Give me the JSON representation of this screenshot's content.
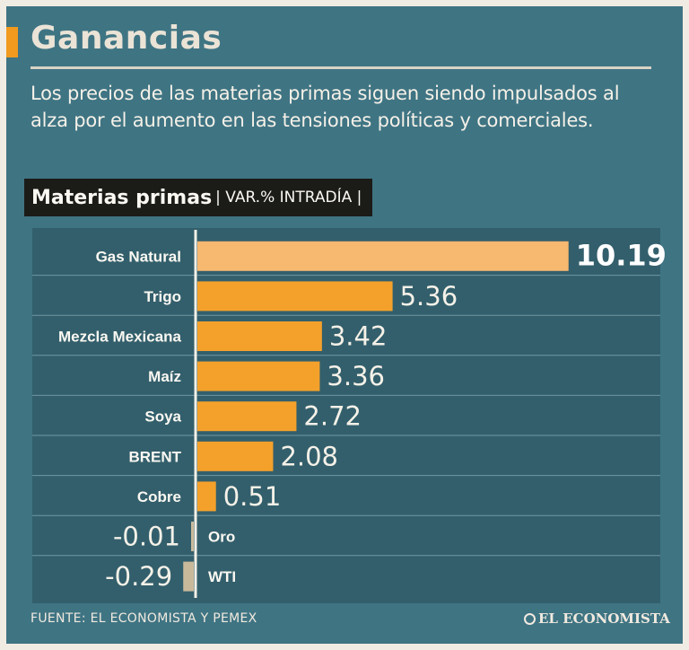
{
  "header": {
    "title": "Ganancias",
    "subtitle": "Los precios de las materias primas siguen siendo impulsados al alza por el aumento en las tensiones políticas y comerciales."
  },
  "chart_header": {
    "main": "Materias primas",
    "sub": "| VAR.% INTRADÍA |"
  },
  "chart_data": {
    "type": "bar",
    "orientation": "horizontal",
    "title": "Materias primas",
    "ylabel": "VAR.% INTRADÍA",
    "categories": [
      "Gas Natural",
      "Trigo",
      "Mezcla Mexicana",
      "Maíz",
      "Soya",
      "BRENT",
      "Cobre",
      "Oro",
      "WTI"
    ],
    "values": [
      10.19,
      5.36,
      3.42,
      3.36,
      2.72,
      2.08,
      0.51,
      -0.01,
      -0.29
    ],
    "value_labels": [
      "10.19",
      "5.36",
      "3.42",
      "3.36",
      "2.72",
      "2.08",
      "0.51",
      "-0.01",
      "-0.29"
    ],
    "highlight_index": 0,
    "colors": {
      "bar": "#f4a12b",
      "highlight_bar": "#f7b870",
      "negative_bar": "#c9b99b",
      "axis": "#f5f1e8",
      "panel": "#335f6c",
      "grid": "#6f97a2"
    }
  },
  "footer": {
    "source": "FUENTE: EL ECONOMISTA Y PEMEX",
    "brand": "EL ECONOMISTA"
  }
}
